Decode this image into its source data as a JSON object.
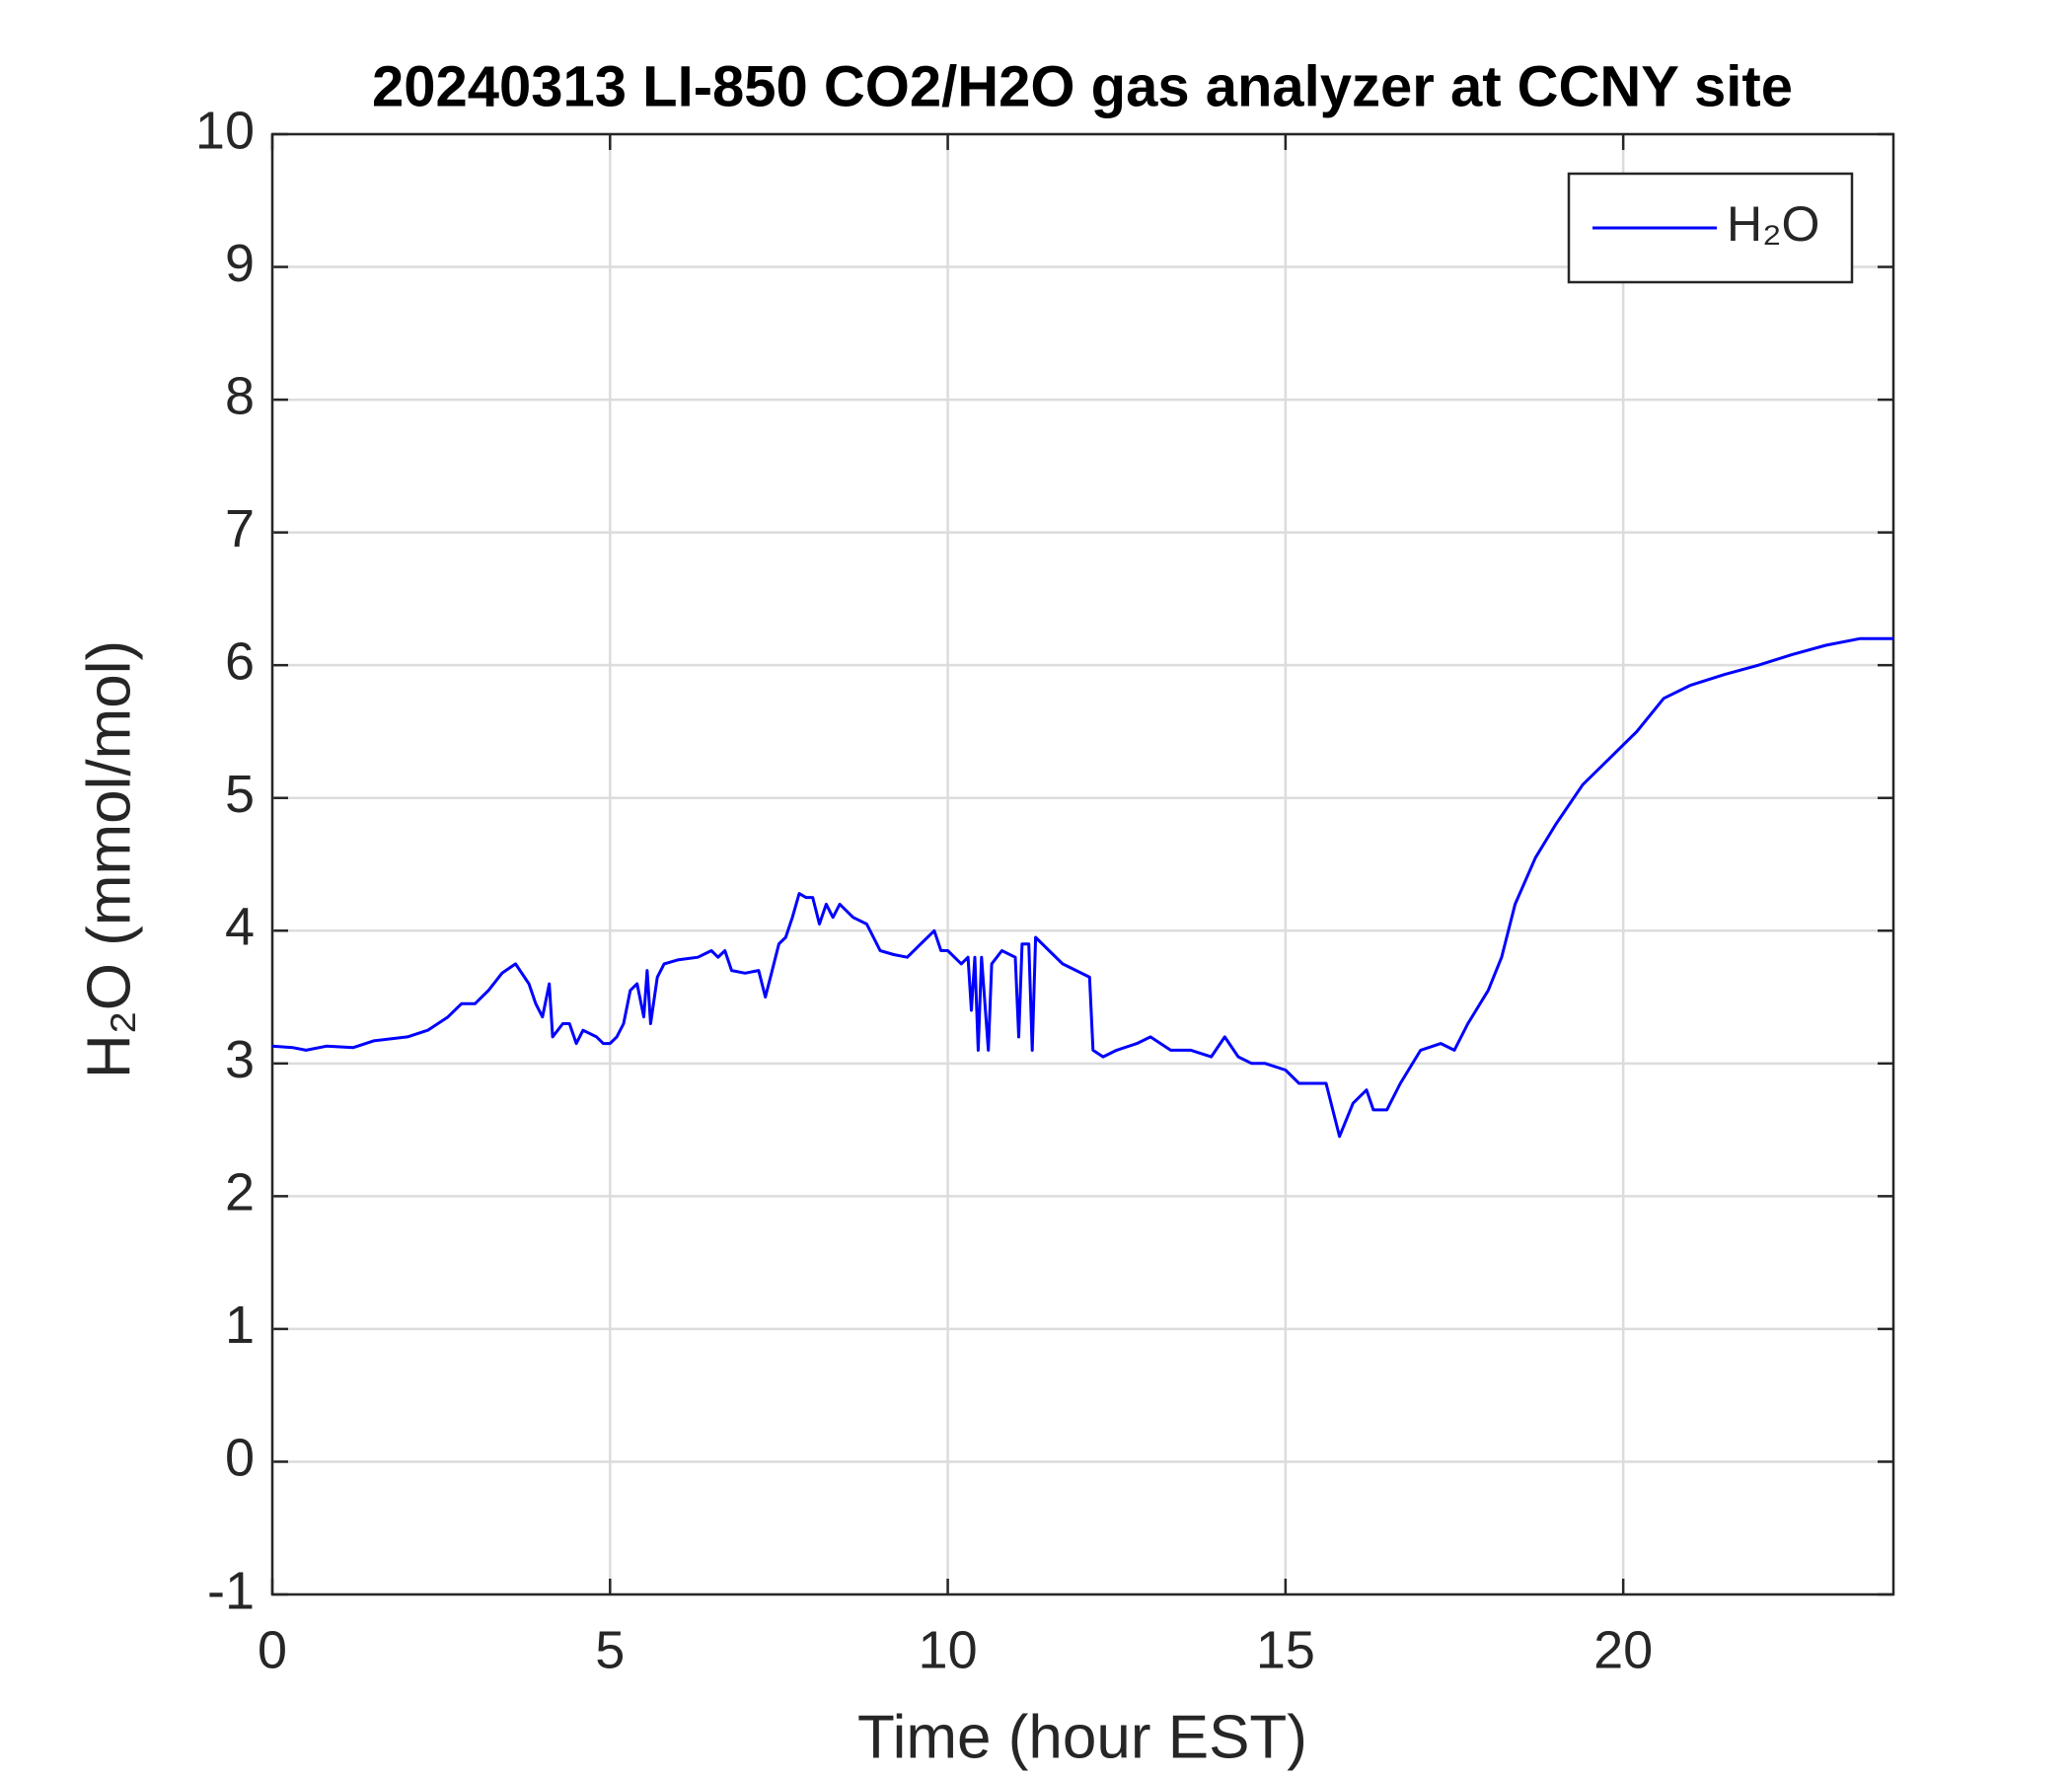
{
  "chart_data": {
    "type": "line",
    "title": "20240313 LI-850 CO2/H2O gas analyzer at CCNY site",
    "x_label": "Time (hour EST)",
    "y_label": "H₂O (mmol/mol)",
    "x": [
      0,
      0.3,
      0.5,
      0.8,
      1.2,
      1.5,
      2.0,
      2.3,
      2.6,
      2.8,
      3.0,
      3.2,
      3.4,
      3.6,
      3.8,
      3.9,
      4.0,
      4.1,
      4.15,
      4.3,
      4.4,
      4.5,
      4.6,
      4.8,
      4.9,
      5.0,
      5.1,
      5.2,
      5.3,
      5.4,
      5.5,
      5.55,
      5.6,
      5.7,
      5.8,
      6.0,
      6.3,
      6.5,
      6.6,
      6.7,
      6.8,
      7.0,
      7.2,
      7.3,
      7.4,
      7.5,
      7.6,
      7.7,
      7.8,
      7.9,
      8.0,
      8.1,
      8.2,
      8.3,
      8.4,
      8.6,
      8.8,
      9.0,
      9.2,
      9.4,
      9.6,
      9.8,
      9.9,
      10.0,
      10.2,
      10.3,
      10.35,
      10.4,
      10.45,
      10.5,
      10.6,
      10.65,
      10.8,
      11.0,
      11.05,
      11.1,
      11.2,
      11.25,
      11.3,
      11.5,
      11.7,
      11.9,
      12.1,
      12.15,
      12.3,
      12.5,
      12.8,
      13.0,
      13.3,
      13.6,
      13.9,
      14.1,
      14.3,
      14.5,
      14.7,
      15.0,
      15.2,
      15.4,
      15.6,
      15.8,
      16.0,
      16.2,
      16.3,
      16.5,
      16.7,
      17.0,
      17.3,
      17.5,
      17.7,
      18.0,
      18.2,
      18.4,
      18.7,
      19.0,
      19.4,
      19.8,
      20.2,
      20.6,
      21.0,
      21.5,
      22.0,
      22.5,
      23.0,
      23.5,
      24
    ],
    "series": [
      {
        "name": "H₂O",
        "color": "#0000ff",
        "values": [
          3.13,
          3.12,
          3.1,
          3.13,
          3.12,
          3.17,
          3.2,
          3.25,
          3.35,
          3.45,
          3.45,
          3.55,
          3.68,
          3.75,
          3.6,
          3.45,
          3.35,
          3.6,
          3.2,
          3.3,
          3.3,
          3.15,
          3.25,
          3.2,
          3.15,
          3.15,
          3.2,
          3.3,
          3.55,
          3.6,
          3.35,
          3.7,
          3.3,
          3.65,
          3.75,
          3.78,
          3.8,
          3.85,
          3.8,
          3.85,
          3.7,
          3.68,
          3.7,
          3.5,
          3.7,
          3.9,
          3.95,
          4.1,
          4.28,
          4.25,
          4.25,
          4.05,
          4.2,
          4.1,
          4.2,
          4.1,
          4.05,
          3.85,
          3.82,
          3.8,
          3.9,
          4.0,
          3.85,
          3.85,
          3.75,
          3.8,
          3.4,
          3.8,
          3.1,
          3.8,
          3.1,
          3.75,
          3.85,
          3.8,
          3.2,
          3.9,
          3.9,
          3.1,
          3.95,
          3.85,
          3.75,
          3.7,
          3.65,
          3.1,
          3.05,
          3.1,
          3.15,
          3.2,
          3.1,
          3.1,
          3.05,
          3.2,
          3.05,
          3.0,
          3.0,
          2.95,
          2.85,
          2.85,
          2.85,
          2.45,
          2.7,
          2.8,
          2.65,
          2.65,
          2.85,
          3.1,
          3.15,
          3.1,
          3.3,
          3.55,
          3.8,
          4.2,
          4.55,
          4.8,
          5.1,
          5.3,
          5.5,
          5.75,
          5.85,
          5.93,
          6.0,
          6.08,
          6.15,
          6.2,
          6.2
        ]
      }
    ],
    "xlim": [
      0,
      24
    ],
    "xticks": [
      0,
      5,
      10,
      15,
      20
    ],
    "ylim": [
      -1,
      10
    ],
    "yticks": [
      -1,
      0,
      1,
      2,
      3,
      4,
      5,
      6,
      7,
      8,
      9,
      10
    ],
    "grid": true,
    "legend": "upper right"
  }
}
